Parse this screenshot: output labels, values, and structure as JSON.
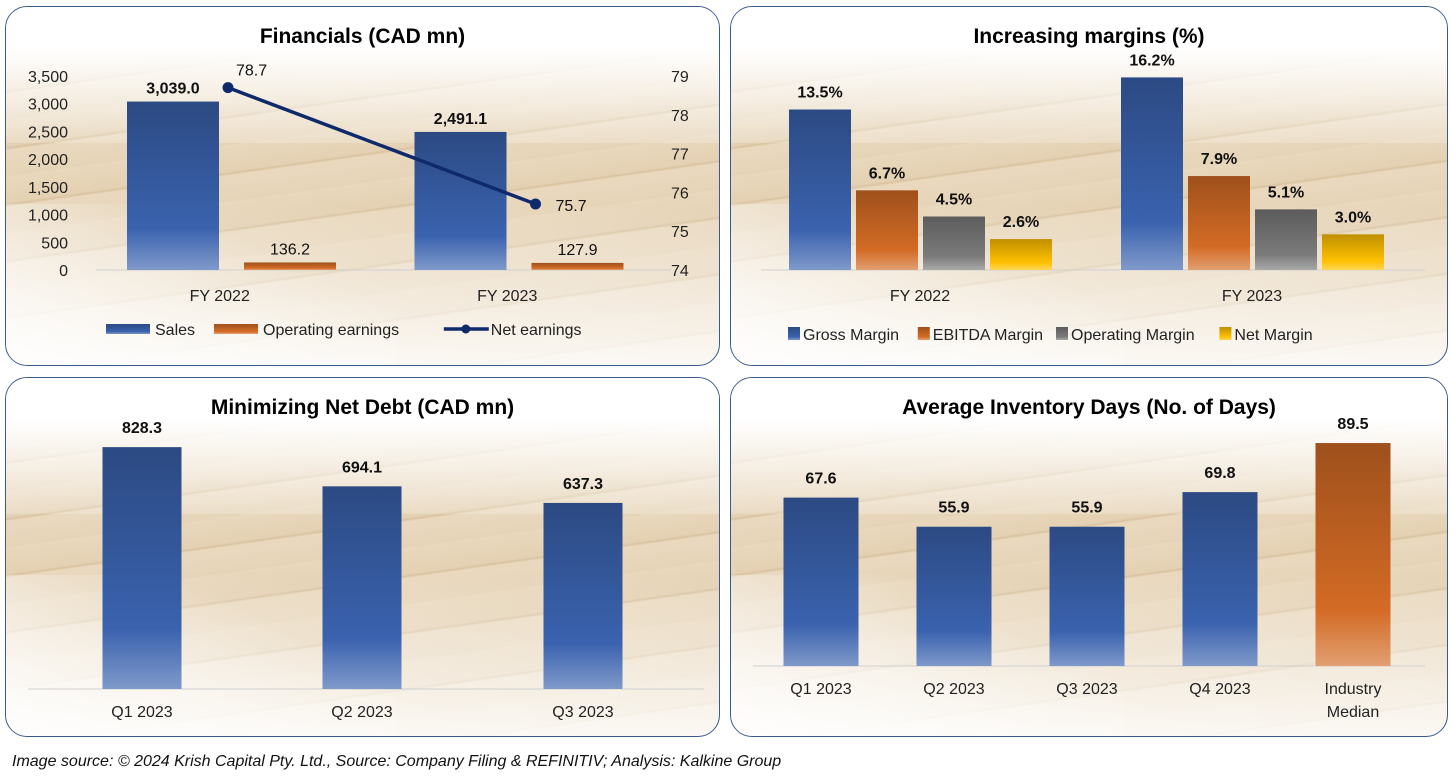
{
  "footer": "Image source: © 2024 Krish Capital Pty. Ltd., Source: Company Filing & REFINITIV; Analysis: Kalkine Group",
  "colors": {
    "blue": "#3a62ae",
    "blue_dark": "#2a4a86",
    "orange": "#d36b25",
    "gray": "#7b7b7b",
    "yellow": "#ffc000",
    "navy_line": "#0f2a6b",
    "border": "#3b5a8c"
  },
  "chart_data": [
    {
      "id": "financials",
      "type": "bar",
      "title": "Financials (CAD mn)",
      "categories": [
        "FY 2022",
        "FY 2023"
      ],
      "series": [
        {
          "name": "Sales",
          "axis": "left",
          "kind": "bar",
          "color": "#3a62ae",
          "values": [
            3039.0,
            2491.1
          ],
          "labels": [
            "3,039.0",
            "2,491.1"
          ],
          "label_bold": true
        },
        {
          "name": "Operating earnings",
          "axis": "left",
          "kind": "bar",
          "color": "#d36b25",
          "values": [
            136.2,
            127.9
          ],
          "labels": [
            "136.2",
            "127.9"
          ],
          "label_bold": false
        },
        {
          "name": "Net earnings",
          "axis": "right",
          "kind": "line",
          "color": "#0f2a6b",
          "values": [
            78.7,
            75.7
          ],
          "labels": [
            "78.7",
            "75.7"
          ],
          "label_bold": false
        }
      ],
      "y_left": {
        "min": 0,
        "max": 3500,
        "step": 500,
        "ticks": [
          "0",
          "500",
          "1,000",
          "1,500",
          "2,000",
          "2,500",
          "3,000",
          "3,500"
        ]
      },
      "y_right": {
        "min": 74,
        "max": 79,
        "step": 1,
        "ticks": [
          "74",
          "75",
          "76",
          "77",
          "78",
          "79"
        ]
      },
      "legend": "bottom",
      "grid": false
    },
    {
      "id": "margins",
      "type": "bar",
      "title": "Increasing margins (%)",
      "categories": [
        "FY 2022",
        "FY 2023"
      ],
      "series": [
        {
          "name": "Gross Margin",
          "color": "#3a62ae",
          "values": [
            13.5,
            16.2
          ],
          "labels": [
            "13.5%",
            "16.2%"
          ]
        },
        {
          "name": "EBITDA Margin",
          "color": "#d36b25",
          "values": [
            6.7,
            7.9
          ],
          "labels": [
            "6.7%",
            "7.9%"
          ]
        },
        {
          "name": "Operating Margin",
          "color": "#7b7b7b",
          "values": [
            4.5,
            5.1
          ],
          "labels": [
            "4.5%",
            "5.1%"
          ]
        },
        {
          "name": "Net Margin",
          "color": "#ffc000",
          "values": [
            2.6,
            3.0
          ],
          "labels": [
            "2.6%",
            "3.0%"
          ]
        }
      ],
      "ylim": [
        0,
        18
      ],
      "legend": "bottom",
      "grid": false
    },
    {
      "id": "net_debt",
      "type": "bar",
      "title": "Minimizing Net Debt (CAD mn)",
      "categories": [
        "Q1 2023",
        "Q2 2023",
        "Q3 2023"
      ],
      "values": [
        828.3,
        694.1,
        637.3
      ],
      "labels": [
        "828.3",
        "694.1",
        "637.3"
      ],
      "colors": [
        "#3a62ae",
        "#3a62ae",
        "#3a62ae"
      ],
      "ylim": [
        0,
        1000
      ],
      "grid": false
    },
    {
      "id": "inventory_days",
      "type": "bar",
      "title": "Average Inventory Days (No. of Days)",
      "categories": [
        "Q1 2023",
        "Q2 2023",
        "Q3 2023",
        "Q4 2023",
        "Industry Median"
      ],
      "category_lines": [
        [
          "Q1 2023"
        ],
        [
          "Q2 2023"
        ],
        [
          "Q3 2023"
        ],
        [
          "Q4 2023"
        ],
        [
          "Industry",
          "Median"
        ]
      ],
      "values": [
        67.6,
        55.9,
        55.9,
        69.8,
        89.5
      ],
      "labels": [
        "67.6",
        "55.9",
        "55.9",
        "69.8",
        "89.5"
      ],
      "colors": [
        "#3a62ae",
        "#3a62ae",
        "#3a62ae",
        "#3a62ae",
        "#d36b25"
      ],
      "ylim": [
        0,
        112
      ],
      "grid": false
    }
  ]
}
